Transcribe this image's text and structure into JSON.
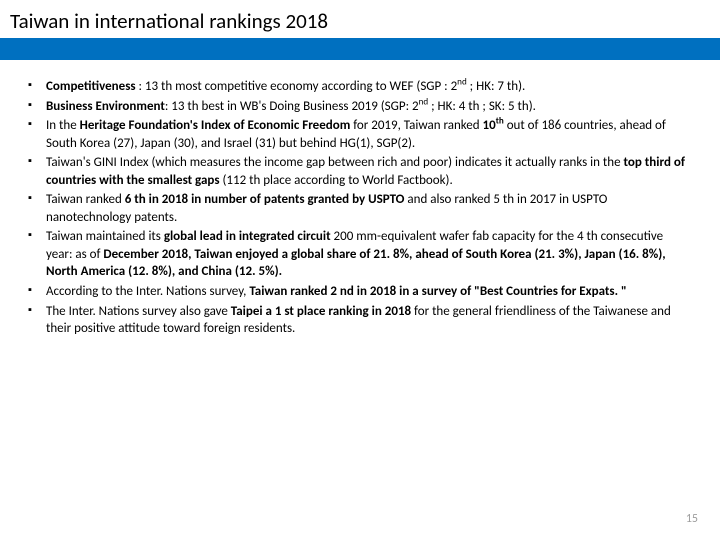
{
  "title": "Taiwan in international rankings 2018",
  "colors": {
    "blue_bar": "#0070c0",
    "background": "#ffffff",
    "text": "#000000",
    "page_num": "#9e9e9e"
  },
  "bullets": [
    {
      "parts": [
        {
          "t": "Competitiveness",
          "b": true
        },
        {
          "t": " : 13 th most competitive economy according to WEF (SGP : 2"
        },
        {
          "t": "nd",
          "sup": true
        },
        {
          "t": " ; HK: 7 th)."
        }
      ]
    },
    {
      "parts": [
        {
          "t": "Business Environment",
          "b": true
        },
        {
          "t": ": 13 th best in WB's Doing Business 2019 (SGP: 2"
        },
        {
          "t": "nd",
          "sup": true
        },
        {
          "t": " ; HK: 4 th ; SK: 5 th)."
        }
      ]
    },
    {
      "parts": [
        {
          "t": "In the "
        },
        {
          "t": "Heritage Foundation's Index of Economic Freedom",
          "b": true
        },
        {
          "t": " for 2019, Taiwan ranked "
        },
        {
          "t": "10",
          "b": true
        },
        {
          "t": "th",
          "b": true,
          "sup": true
        },
        {
          "t": " out of 186 countries, ahead of South Korea (27), Japan (30), and Israel (31) but behind HG(1), SGP(2)."
        }
      ]
    },
    {
      "parts": [
        {
          "t": "Taiwan's GINI Index (which measures the income gap between rich and poor) indicates it actually ranks in the "
        },
        {
          "t": "top third of countries with the smallest gaps",
          "b": true
        },
        {
          "t": " (112 th place according to World Factbook)."
        }
      ]
    },
    {
      "parts": [
        {
          "t": "Taiwan ranked "
        },
        {
          "t": "6 th in 2018 in number of patents granted by USPTO",
          "b": true
        },
        {
          "t": " and also ranked 5 th in 2017 in USPTO nanotechnology patents."
        }
      ]
    },
    {
      "parts": [
        {
          "t": "Taiwan maintained its "
        },
        {
          "t": "global lead in integrated circuit",
          "b": true
        },
        {
          "t": " 200 mm-equivalent wafer fab capacity for the 4 th consecutive year: as of "
        },
        {
          "t": "December 2018, Taiwan enjoyed a global share of 21. 8%, ahead of South Korea (21. 3%), Japan (16. 8%), North America (12. 8%), and China (12. 5%).",
          "b": true
        }
      ]
    },
    {
      "parts": [
        {
          "t": "According to the Inter. Nations survey, "
        },
        {
          "t": "Taiwan ranked 2 nd in 2018 in a survey of \"Best Countries for Expats. \"",
          "b": true
        }
      ]
    },
    {
      "parts": [
        {
          "t": "The Inter. Nations survey also gave "
        },
        {
          "t": "Taipei a 1 st place ranking in 2018",
          "b": true
        },
        {
          "t": " for the general friendliness of the Taiwanese and their positive attitude toward foreign residents."
        }
      ]
    }
  ],
  "page_number": "15"
}
